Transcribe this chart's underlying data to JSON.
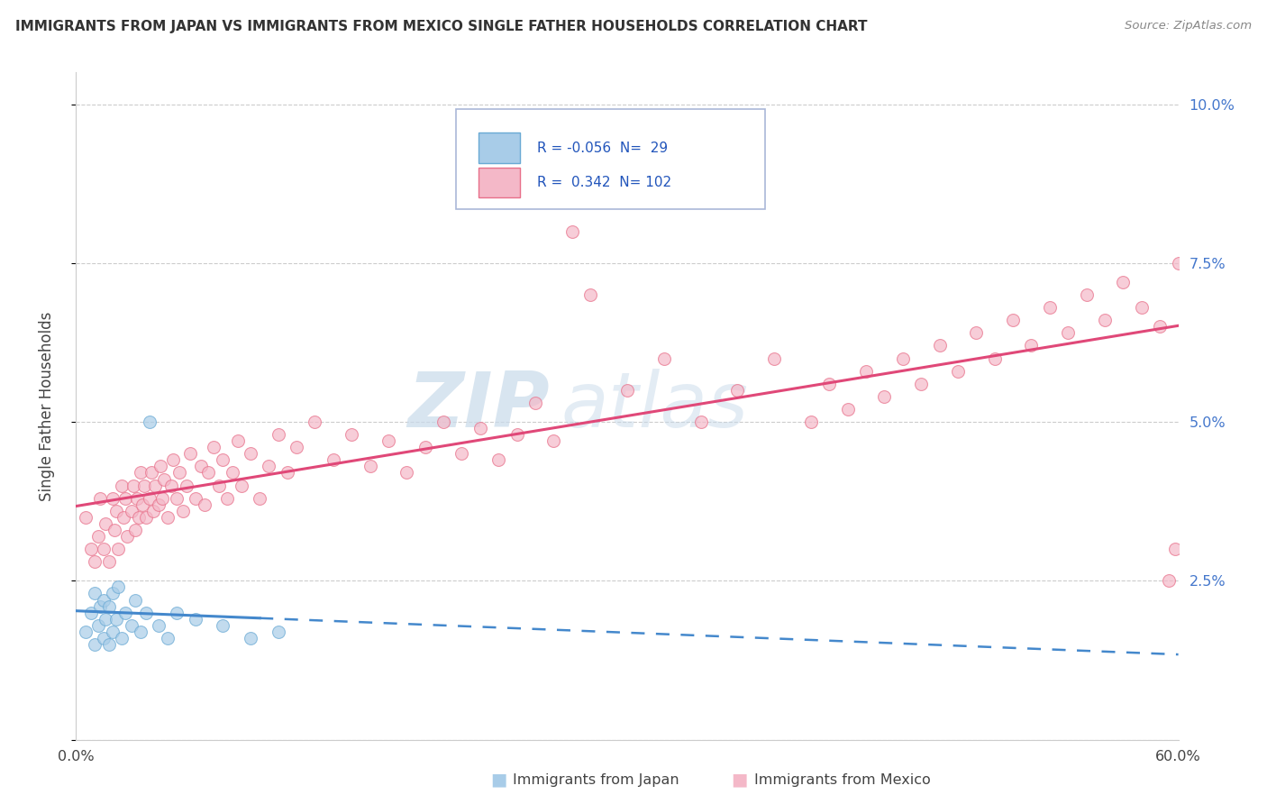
{
  "title": "IMMIGRANTS FROM JAPAN VS IMMIGRANTS FROM MEXICO SINGLE FATHER HOUSEHOLDS CORRELATION CHART",
  "source": "Source: ZipAtlas.com",
  "xlabel_japan": "Immigrants from Japan",
  "xlabel_mexico": "Immigrants from Mexico",
  "ylabel": "Single Father Households",
  "japan_R": -0.056,
  "japan_N": 29,
  "mexico_R": 0.342,
  "mexico_N": 102,
  "japan_color": "#a8cce8",
  "japan_edge_color": "#6aaad4",
  "mexico_color": "#f4b8c8",
  "mexico_edge_color": "#e8708a",
  "japan_line_color": "#4488cc",
  "mexico_line_color": "#e04878",
  "grid_color": "#cccccc",
  "xlim_min": 0.0,
  "xlim_max": 0.6,
  "ylim_min": 0.0,
  "ylim_max": 0.105,
  "japan_x": [
    0.005,
    0.008,
    0.01,
    0.01,
    0.012,
    0.013,
    0.015,
    0.015,
    0.016,
    0.018,
    0.018,
    0.02,
    0.02,
    0.022,
    0.023,
    0.025,
    0.027,
    0.03,
    0.032,
    0.035,
    0.038,
    0.04,
    0.045,
    0.05,
    0.055,
    0.065,
    0.08,
    0.095,
    0.11
  ],
  "japan_y": [
    0.017,
    0.02,
    0.015,
    0.023,
    0.018,
    0.021,
    0.016,
    0.022,
    0.019,
    0.015,
    0.021,
    0.017,
    0.023,
    0.019,
    0.024,
    0.016,
    0.02,
    0.018,
    0.022,
    0.017,
    0.02,
    0.05,
    0.018,
    0.016,
    0.02,
    0.019,
    0.018,
    0.016,
    0.017
  ],
  "mexico_x": [
    0.005,
    0.008,
    0.01,
    0.012,
    0.013,
    0.015,
    0.016,
    0.018,
    0.02,
    0.021,
    0.022,
    0.023,
    0.025,
    0.026,
    0.027,
    0.028,
    0.03,
    0.031,
    0.032,
    0.033,
    0.034,
    0.035,
    0.036,
    0.037,
    0.038,
    0.04,
    0.041,
    0.042,
    0.043,
    0.045,
    0.046,
    0.047,
    0.048,
    0.05,
    0.052,
    0.053,
    0.055,
    0.056,
    0.058,
    0.06,
    0.062,
    0.065,
    0.068,
    0.07,
    0.072,
    0.075,
    0.078,
    0.08,
    0.082,
    0.085,
    0.088,
    0.09,
    0.095,
    0.1,
    0.105,
    0.11,
    0.115,
    0.12,
    0.13,
    0.14,
    0.15,
    0.16,
    0.17,
    0.18,
    0.19,
    0.2,
    0.21,
    0.22,
    0.23,
    0.24,
    0.25,
    0.26,
    0.27,
    0.28,
    0.3,
    0.32,
    0.34,
    0.36,
    0.38,
    0.4,
    0.41,
    0.42,
    0.43,
    0.44,
    0.45,
    0.46,
    0.47,
    0.48,
    0.49,
    0.5,
    0.51,
    0.52,
    0.53,
    0.54,
    0.55,
    0.56,
    0.57,
    0.58,
    0.59,
    0.595,
    0.598,
    0.6
  ],
  "mexico_y": [
    0.035,
    0.03,
    0.028,
    0.032,
    0.038,
    0.03,
    0.034,
    0.028,
    0.038,
    0.033,
    0.036,
    0.03,
    0.04,
    0.035,
    0.038,
    0.032,
    0.036,
    0.04,
    0.033,
    0.038,
    0.035,
    0.042,
    0.037,
    0.04,
    0.035,
    0.038,
    0.042,
    0.036,
    0.04,
    0.037,
    0.043,
    0.038,
    0.041,
    0.035,
    0.04,
    0.044,
    0.038,
    0.042,
    0.036,
    0.04,
    0.045,
    0.038,
    0.043,
    0.037,
    0.042,
    0.046,
    0.04,
    0.044,
    0.038,
    0.042,
    0.047,
    0.04,
    0.045,
    0.038,
    0.043,
    0.048,
    0.042,
    0.046,
    0.05,
    0.044,
    0.048,
    0.043,
    0.047,
    0.042,
    0.046,
    0.05,
    0.045,
    0.049,
    0.044,
    0.048,
    0.053,
    0.047,
    0.08,
    0.07,
    0.055,
    0.06,
    0.05,
    0.055,
    0.06,
    0.05,
    0.056,
    0.052,
    0.058,
    0.054,
    0.06,
    0.056,
    0.062,
    0.058,
    0.064,
    0.06,
    0.066,
    0.062,
    0.068,
    0.064,
    0.07,
    0.066,
    0.072,
    0.068,
    0.065,
    0.025,
    0.03,
    0.075
  ]
}
